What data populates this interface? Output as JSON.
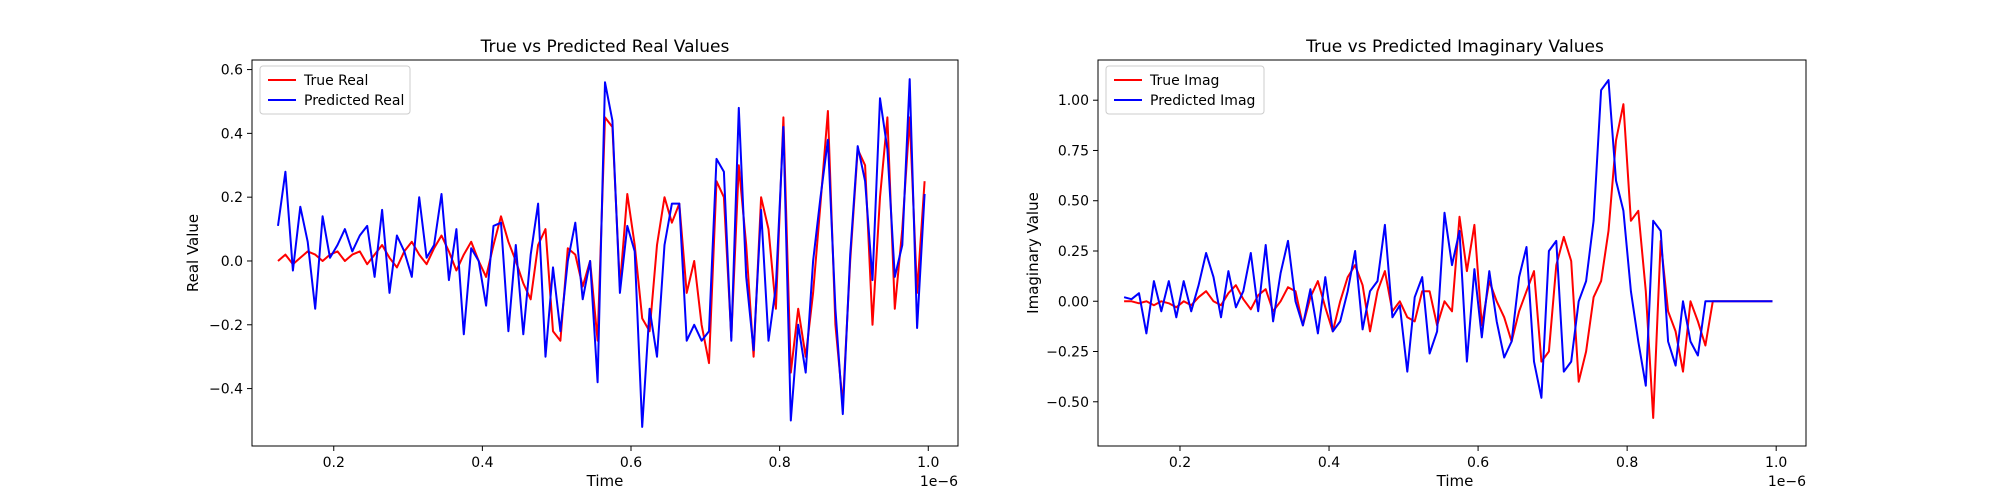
{
  "figure": {
    "background": "#ffffff"
  },
  "charts": [
    {
      "key": "real",
      "title": "True vs Predicted Real Values",
      "xlabel": "Time",
      "ylabel": "Real Value",
      "x_offset_text": "1e−6",
      "x_ticks": [
        "0.2",
        "0.4",
        "0.6",
        "0.8",
        "1.0"
      ],
      "y_ticks": [
        "−0.4",
        "−0.2",
        "0.0",
        "0.2",
        "0.4",
        "0.6"
      ],
      "legend": [
        "True Real",
        "Predicted Real"
      ]
    },
    {
      "key": "imag",
      "title": "True vs Predicted Imaginary Values",
      "xlabel": "Time",
      "ylabel": "Imaginary Value",
      "x_offset_text": "1e−6",
      "x_ticks": [
        "0.2",
        "0.4",
        "0.6",
        "0.8",
        "1.0"
      ],
      "y_ticks": [
        "−0.50",
        "−0.25",
        "0.00",
        "0.25",
        "0.50",
        "0.75",
        "1.00"
      ],
      "legend": [
        "True Imag",
        "Predicted Imag"
      ]
    }
  ],
  "chart_data": [
    {
      "type": "line",
      "title": "True vs Predicted Real Values",
      "xlabel": "Time",
      "ylabel": "Real Value",
      "x_scale_note": "1e-6",
      "xlim": [
        0.09,
        1.04
      ],
      "ylim": [
        -0.58,
        0.63
      ],
      "x_ticks": [
        0.2,
        0.4,
        0.6,
        0.8,
        1.0
      ],
      "y_ticks": [
        -0.4,
        -0.2,
        0.0,
        0.2,
        0.4,
        0.6
      ],
      "grid": false,
      "legend_position": "upper-left",
      "x": [
        0.125,
        0.135,
        0.145,
        0.155,
        0.165,
        0.175,
        0.185,
        0.195,
        0.205,
        0.215,
        0.225,
        0.235,
        0.245,
        0.255,
        0.265,
        0.275,
        0.285,
        0.295,
        0.305,
        0.315,
        0.325,
        0.335,
        0.345,
        0.355,
        0.365,
        0.375,
        0.385,
        0.395,
        0.405,
        0.415,
        0.425,
        0.435,
        0.445,
        0.455,
        0.465,
        0.475,
        0.485,
        0.495,
        0.505,
        0.515,
        0.525,
        0.535,
        0.545,
        0.555,
        0.565,
        0.575,
        0.585,
        0.595,
        0.605,
        0.615,
        0.625,
        0.635,
        0.645,
        0.655,
        0.665,
        0.675,
        0.685,
        0.695,
        0.705,
        0.715,
        0.725,
        0.735,
        0.745,
        0.755,
        0.765,
        0.775,
        0.785,
        0.795,
        0.805,
        0.815,
        0.825,
        0.835,
        0.845,
        0.855,
        0.865,
        0.875,
        0.885,
        0.895,
        0.905,
        0.915,
        0.925,
        0.935,
        0.945,
        0.955,
        0.965,
        0.975,
        0.985,
        0.995
      ],
      "series": [
        {
          "name": "True Real",
          "color": "#ff0000",
          "values": [
            0.0,
            0.02,
            -0.01,
            0.01,
            0.03,
            0.02,
            0.0,
            0.02,
            0.03,
            0.0,
            0.02,
            0.03,
            -0.01,
            0.02,
            0.05,
            0.01,
            -0.02,
            0.03,
            0.06,
            0.02,
            -0.01,
            0.04,
            0.08,
            0.03,
            -0.03,
            0.02,
            0.06,
            0.0,
            -0.05,
            0.05,
            0.14,
            0.06,
            0.0,
            -0.07,
            -0.12,
            0.05,
            0.1,
            -0.22,
            -0.25,
            0.04,
            0.02,
            -0.08,
            0.0,
            -0.25,
            0.45,
            0.42,
            -0.08,
            0.21,
            0.05,
            -0.18,
            -0.22,
            0.05,
            0.2,
            0.12,
            0.18,
            -0.1,
            0.0,
            -0.2,
            -0.32,
            0.25,
            0.2,
            -0.24,
            0.3,
            0.05,
            -0.3,
            0.2,
            0.1,
            -0.15,
            0.45,
            -0.35,
            -0.15,
            -0.3,
            -0.1,
            0.18,
            0.47,
            -0.2,
            -0.45,
            0.0,
            0.35,
            0.3,
            -0.2,
            0.2,
            0.45,
            -0.15,
            0.1,
            0.45,
            -0.1,
            0.25
          ]
        },
        {
          "name": "Predicted Real",
          "color": "#0000ff",
          "values": [
            0.11,
            0.28,
            -0.03,
            0.17,
            0.06,
            -0.15,
            0.14,
            0.01,
            0.05,
            0.1,
            0.03,
            0.08,
            0.11,
            -0.05,
            0.16,
            -0.1,
            0.08,
            0.03,
            -0.05,
            0.2,
            0.01,
            0.05,
            0.21,
            -0.06,
            0.1,
            -0.23,
            0.04,
            0.0,
            -0.14,
            0.11,
            0.12,
            -0.22,
            0.05,
            -0.23,
            0.02,
            0.18,
            -0.3,
            -0.02,
            -0.22,
            0.0,
            0.12,
            -0.12,
            0.0,
            -0.38,
            0.56,
            0.44,
            -0.1,
            0.11,
            0.03,
            -0.52,
            -0.15,
            -0.3,
            0.05,
            0.18,
            0.18,
            -0.25,
            -0.2,
            -0.25,
            -0.22,
            0.32,
            0.28,
            -0.25,
            0.48,
            -0.05,
            -0.28,
            0.16,
            -0.25,
            -0.08,
            0.42,
            -0.5,
            -0.2,
            -0.35,
            0.0,
            0.2,
            0.38,
            -0.15,
            -0.48,
            0.02,
            0.36,
            0.25,
            -0.06,
            0.51,
            0.35,
            -0.05,
            0.05,
            0.57,
            -0.21,
            0.21
          ]
        }
      ]
    },
    {
      "type": "line",
      "title": "True vs Predicted Imaginary Values",
      "xlabel": "Time",
      "ylabel": "Imaginary Value",
      "x_scale_note": "1e-6",
      "xlim": [
        0.09,
        1.04
      ],
      "ylim": [
        -0.72,
        1.2
      ],
      "x_ticks": [
        0.2,
        0.4,
        0.6,
        0.8,
        1.0
      ],
      "y_ticks": [
        -0.5,
        -0.25,
        0.0,
        0.25,
        0.5,
        0.75,
        1.0
      ],
      "grid": false,
      "legend_position": "upper-left",
      "x": [
        0.125,
        0.135,
        0.145,
        0.155,
        0.165,
        0.175,
        0.185,
        0.195,
        0.205,
        0.215,
        0.225,
        0.235,
        0.245,
        0.255,
        0.265,
        0.275,
        0.285,
        0.295,
        0.305,
        0.315,
        0.325,
        0.335,
        0.345,
        0.355,
        0.365,
        0.375,
        0.385,
        0.395,
        0.405,
        0.415,
        0.425,
        0.435,
        0.445,
        0.455,
        0.465,
        0.475,
        0.485,
        0.495,
        0.505,
        0.515,
        0.525,
        0.535,
        0.545,
        0.555,
        0.565,
        0.575,
        0.585,
        0.595,
        0.605,
        0.615,
        0.625,
        0.635,
        0.645,
        0.655,
        0.665,
        0.675,
        0.685,
        0.695,
        0.705,
        0.715,
        0.725,
        0.735,
        0.745,
        0.755,
        0.765,
        0.775,
        0.785,
        0.795,
        0.805,
        0.815,
        0.825,
        0.835,
        0.845,
        0.855,
        0.865,
        0.875,
        0.885,
        0.895,
        0.905,
        0.915,
        0.925,
        0.935,
        0.945,
        0.955,
        0.965,
        0.975,
        0.985,
        0.995
      ],
      "series": [
        {
          "name": "True Imag",
          "color": "#ff0000",
          "values": [
            0.0,
            0.0,
            -0.01,
            0.0,
            -0.02,
            0.0,
            -0.01,
            -0.03,
            0.0,
            -0.02,
            0.02,
            0.05,
            0.0,
            -0.02,
            0.04,
            0.08,
            0.01,
            -0.04,
            0.03,
            0.06,
            -0.05,
            0.0,
            0.07,
            0.05,
            -0.12,
            0.02,
            0.1,
            -0.03,
            -0.15,
            0.0,
            0.12,
            0.18,
            0.08,
            -0.15,
            0.05,
            0.15,
            -0.05,
            0.0,
            -0.08,
            -0.1,
            0.05,
            0.05,
            -0.12,
            0.0,
            -0.05,
            0.42,
            0.15,
            0.38,
            -0.12,
            0.1,
            0.0,
            -0.08,
            -0.2,
            -0.05,
            0.05,
            0.15,
            -0.3,
            -0.25,
            0.18,
            0.32,
            0.2,
            -0.4,
            -0.25,
            0.02,
            0.1,
            0.35,
            0.8,
            0.98,
            0.4,
            0.45,
            0.05,
            -0.58,
            0.3,
            -0.05,
            -0.15,
            -0.35,
            0.0,
            -0.1,
            -0.22,
            0.0,
            0.0,
            0.0,
            0.0,
            0.0,
            0.0,
            0.0,
            0.0,
            0.0
          ]
        },
        {
          "name": "Predicted Imag",
          "color": "#0000ff",
          "values": [
            0.02,
            0.01,
            0.04,
            -0.16,
            0.1,
            -0.05,
            0.1,
            -0.08,
            0.1,
            -0.05,
            0.08,
            0.24,
            0.12,
            -0.08,
            0.15,
            -0.03,
            0.05,
            0.24,
            -0.05,
            0.28,
            -0.1,
            0.14,
            0.3,
            0.0,
            -0.12,
            0.06,
            -0.16,
            0.12,
            -0.15,
            -0.1,
            0.05,
            0.25,
            -0.14,
            0.05,
            0.1,
            0.38,
            -0.08,
            -0.02,
            -0.35,
            0.02,
            0.12,
            -0.26,
            -0.15,
            0.44,
            0.18,
            0.35,
            -0.3,
            0.16,
            -0.18,
            0.15,
            -0.1,
            -0.28,
            -0.2,
            0.12,
            0.27,
            -0.3,
            -0.48,
            0.25,
            0.3,
            -0.35,
            -0.3,
            0.0,
            0.1,
            0.4,
            1.05,
            1.1,
            0.6,
            0.45,
            0.05,
            -0.2,
            -0.42,
            0.4,
            0.35,
            -0.2,
            -0.32,
            0.0,
            -0.2,
            -0.27,
            0.0,
            0.0,
            0.0,
            0.0,
            0.0,
            0.0,
            0.0,
            0.0,
            0.0,
            0.0
          ]
        }
      ]
    }
  ]
}
